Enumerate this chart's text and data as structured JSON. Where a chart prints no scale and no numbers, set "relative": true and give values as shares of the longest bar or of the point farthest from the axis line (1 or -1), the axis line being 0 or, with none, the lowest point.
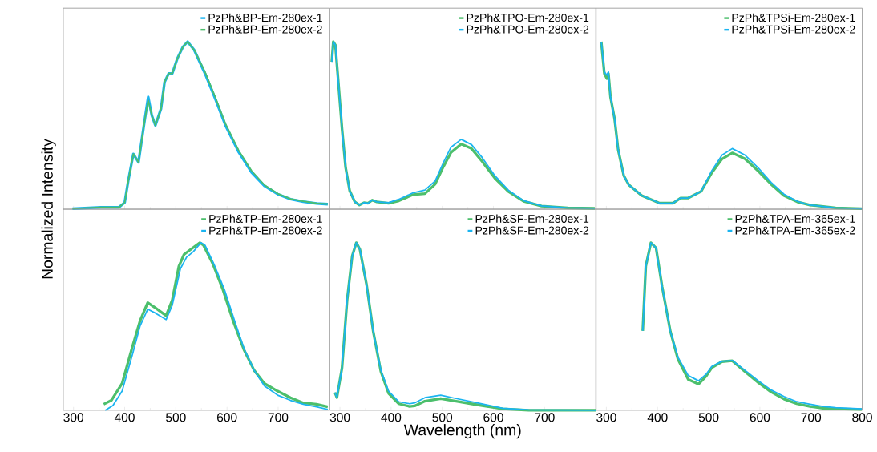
{
  "chart_data": [
    {
      "type": "line",
      "relative": true,
      "xlim": [
        280,
        800
      ],
      "xticks": [
        300,
        400,
        500,
        600,
        700
      ],
      "tick_labels": false,
      "legend": "top right",
      "ylabel": "Normalized Intensity",
      "series": [
        {
          "name": "PzPh&BP-Em-280ex-1",
          "color": "#1ab4f0",
          "x": [
            298,
            354,
            389,
            400,
            407,
            417,
            427,
            438,
            446,
            453,
            460,
            471,
            478,
            486,
            493,
            503,
            514,
            523,
            536,
            557,
            577,
            597,
            623,
            648,
            673,
            699,
            724,
            749,
            775,
            797
          ],
          "values": [
            0.003,
            0.012,
            0.012,
            0.04,
            0.17,
            0.33,
            0.28,
            0.51,
            0.67,
            0.56,
            0.5,
            0.6,
            0.76,
            0.81,
            0.81,
            0.9,
            0.97,
            1.0,
            0.95,
            0.81,
            0.66,
            0.5,
            0.34,
            0.22,
            0.14,
            0.09,
            0.06,
            0.045,
            0.034,
            0.03
          ]
        },
        {
          "name": "PzPh&BP-Em-280ex-2",
          "color": "#4cbf6c",
          "x": [
            298,
            354,
            389,
            400,
            407,
            417,
            427,
            438,
            446,
            453,
            460,
            471,
            478,
            486,
            493,
            503,
            514,
            523,
            536,
            557,
            577,
            597,
            623,
            648,
            673,
            699,
            724,
            749,
            775,
            797
          ],
          "values": [
            0.003,
            0.012,
            0.012,
            0.04,
            0.17,
            0.33,
            0.28,
            0.51,
            0.65,
            0.56,
            0.5,
            0.6,
            0.76,
            0.81,
            0.81,
            0.9,
            0.97,
            1.0,
            0.95,
            0.82,
            0.67,
            0.51,
            0.35,
            0.23,
            0.145,
            0.093,
            0.062,
            0.047,
            0.036,
            0.031
          ]
        }
      ]
    },
    {
      "type": "line",
      "relative": true,
      "xlim": [
        280,
        800
      ],
      "xticks": [
        300,
        400,
        500,
        600,
        700
      ],
      "tick_labels": false,
      "legend": "top right",
      "series": [
        {
          "name": "PzPh&TPO-Em-280ex-1",
          "color": "#4cbf6c",
          "x": [
            284,
            287,
            291,
            296,
            304,
            311,
            319,
            329,
            338,
            347,
            355,
            363,
            372,
            395,
            415,
            443,
            466,
            486,
            502,
            517,
            537,
            557,
            578,
            603,
            629,
            659,
            694,
            745,
            798
          ],
          "values": [
            0.88,
            1.0,
            0.98,
            0.79,
            0.48,
            0.25,
            0.11,
            0.044,
            0.025,
            0.039,
            0.036,
            0.054,
            0.044,
            0.035,
            0.05,
            0.087,
            0.093,
            0.149,
            0.253,
            0.339,
            0.389,
            0.362,
            0.285,
            0.184,
            0.106,
            0.047,
            0.019,
            0.008,
            0.005
          ]
        },
        {
          "name": "PzPh&TPO-Em-280ex-2",
          "color": "#1ab4f0",
          "x": [
            284,
            287,
            291,
            296,
            304,
            311,
            319,
            329,
            338,
            347,
            355,
            363,
            372,
            395,
            415,
            443,
            466,
            486,
            502,
            517,
            537,
            557,
            578,
            603,
            629,
            659,
            694,
            745,
            798
          ],
          "values": [
            0.88,
            1.0,
            0.98,
            0.79,
            0.48,
            0.25,
            0.11,
            0.044,
            0.025,
            0.039,
            0.036,
            0.054,
            0.044,
            0.039,
            0.059,
            0.098,
            0.114,
            0.168,
            0.277,
            0.37,
            0.417,
            0.386,
            0.308,
            0.199,
            0.114,
            0.051,
            0.02,
            0.008,
            0.005
          ]
        }
      ]
    },
    {
      "type": "line",
      "relative": true,
      "xlim": [
        280,
        800
      ],
      "xticks": [
        300,
        400,
        500,
        600,
        700
      ],
      "tick_labels": false,
      "legend": "top right",
      "series": [
        {
          "name": "PzPh&TPSi-Em-280ex-1",
          "color": "#4cbf6c",
          "x": [
            290,
            296,
            301,
            304,
            308,
            316,
            323,
            334,
            344,
            369,
            404,
            430,
            445,
            460,
            485,
            506,
            526,
            546,
            571,
            597,
            622,
            647,
            673,
            698,
            748,
            799
          ],
          "values": [
            1.0,
            0.81,
            0.78,
            0.81,
            0.67,
            0.54,
            0.355,
            0.2,
            0.145,
            0.082,
            0.036,
            0.036,
            0.067,
            0.067,
            0.106,
            0.218,
            0.3,
            0.336,
            0.3,
            0.227,
            0.149,
            0.082,
            0.044,
            0.025,
            0.008,
            0.003
          ]
        },
        {
          "name": "PzPh&TPSi-Em-280ex-2",
          "color": "#1ab4f0",
          "x": [
            290,
            296,
            301,
            304,
            308,
            316,
            323,
            334,
            344,
            369,
            404,
            430,
            445,
            460,
            485,
            506,
            526,
            546,
            571,
            597,
            622,
            647,
            673,
            698,
            748,
            799
          ],
          "values": [
            1.0,
            0.82,
            0.8,
            0.82,
            0.67,
            0.54,
            0.355,
            0.2,
            0.145,
            0.082,
            0.036,
            0.036,
            0.067,
            0.067,
            0.106,
            0.23,
            0.323,
            0.362,
            0.323,
            0.246,
            0.16,
            0.09,
            0.047,
            0.025,
            0.008,
            0.003
          ]
        }
      ]
    },
    {
      "type": "line",
      "relative": true,
      "xlim": [
        280,
        800
      ],
      "xticks": [
        300,
        400,
        500,
        600,
        700
      ],
      "tick_labels": "x",
      "legend": "top right",
      "series": [
        {
          "name": "PzPh&TP-Em-280ex-1",
          "color": "#4cbf6c",
          "x": [
            359,
            374,
            395,
            415,
            430,
            445,
            460,
            481,
            493,
            506,
            516,
            529,
            547,
            554,
            572,
            592,
            612,
            633,
            653,
            673,
            699,
            724,
            749,
            775,
            797
          ],
          "values": [
            0.036,
            0.059,
            0.16,
            0.378,
            0.533,
            0.642,
            0.611,
            0.565,
            0.658,
            0.86,
            0.93,
            0.96,
            1.0,
            0.985,
            0.876,
            0.72,
            0.533,
            0.362,
            0.238,
            0.16,
            0.114,
            0.075,
            0.044,
            0.036,
            0.02
          ]
        },
        {
          "name": "PzPh&TP-Em-280ex-2",
          "color": "#1ab4f0",
          "x": [
            362,
            377,
            395,
            415,
            430,
            445,
            460,
            481,
            493,
            509,
            521,
            534,
            549,
            557,
            574,
            595,
            615,
            633,
            653,
            673,
            699,
            724,
            749,
            775,
            797
          ],
          "values": [
            0.0,
            0.028,
            0.114,
            0.331,
            0.502,
            0.603,
            0.58,
            0.541,
            0.627,
            0.845,
            0.914,
            0.946,
            1.0,
            0.985,
            0.876,
            0.72,
            0.533,
            0.37,
            0.238,
            0.145,
            0.09,
            0.059,
            0.036,
            0.02,
            0.005
          ]
        }
      ]
    },
    {
      "type": "line",
      "relative": true,
      "xlim": [
        280,
        800
      ],
      "xticks": [
        300,
        400,
        500,
        600,
        700
      ],
      "tick_labels": "x",
      "legend": "top right",
      "xlabel": "Wavelength (nm)",
      "series": [
        {
          "name": "PzPh&SF-Em-280ex-1",
          "color": "#4cbf6c",
          "x": [
            290,
            294,
            304,
            314,
            324,
            332,
            339,
            352,
            365,
            380,
            395,
            415,
            436,
            446,
            466,
            497,
            527,
            568,
            618,
            669,
            800
          ],
          "values": [
            0.106,
            0.075,
            0.253,
            0.658,
            0.922,
            1.0,
            0.96,
            0.75,
            0.471,
            0.23,
            0.101,
            0.039,
            0.023,
            0.026,
            0.054,
            0.07,
            0.054,
            0.033,
            0.008,
            0.0,
            0.0
          ]
        },
        {
          "name": "PzPh&SF-Em-280ex-2",
          "color": "#1ab4f0",
          "x": [
            290,
            294,
            304,
            314,
            324,
            332,
            339,
            352,
            365,
            380,
            395,
            415,
            436,
            446,
            466,
            497,
            527,
            568,
            618,
            669,
            800
          ],
          "values": [
            0.106,
            0.075,
            0.253,
            0.658,
            0.922,
            1.0,
            0.96,
            0.75,
            0.471,
            0.238,
            0.114,
            0.051,
            0.039,
            0.044,
            0.075,
            0.09,
            0.07,
            0.044,
            0.012,
            0.002,
            0.0
          ]
        }
      ]
    },
    {
      "type": "line",
      "relative": true,
      "xlim": [
        280,
        800
      ],
      "xticks": [
        300,
        400,
        500,
        600,
        700,
        800
      ],
      "tick_labels": "x",
      "legend": "top right",
      "series": [
        {
          "name": "PzPh&TPA-Em-365ex-1",
          "color": "#4cbf6c",
          "x": [
            371,
            377,
            387,
            397,
            409,
            425,
            440,
            460,
            480,
            495,
            506,
            526,
            546,
            571,
            597,
            622,
            647,
            672,
            698,
            723,
            748,
            799
          ],
          "values": [
            0.474,
            0.86,
            1.0,
            0.969,
            0.736,
            0.471,
            0.303,
            0.184,
            0.156,
            0.204,
            0.254,
            0.29,
            0.295,
            0.23,
            0.165,
            0.109,
            0.067,
            0.039,
            0.023,
            0.012,
            0.008,
            0.005
          ]
        },
        {
          "name": "PzPh&TPA-Em-365ex-2",
          "color": "#1ab4f0",
          "x": [
            371,
            377,
            387,
            397,
            409,
            425,
            440,
            460,
            480,
            495,
            506,
            526,
            546,
            571,
            597,
            622,
            647,
            672,
            698,
            723,
            748,
            799
          ],
          "values": [
            0.474,
            0.86,
            1.0,
            0.969,
            0.736,
            0.471,
            0.316,
            0.207,
            0.176,
            0.215,
            0.261,
            0.292,
            0.297,
            0.238,
            0.176,
            0.121,
            0.082,
            0.051,
            0.036,
            0.023,
            0.016,
            0.008
          ]
        }
      ]
    }
  ]
}
